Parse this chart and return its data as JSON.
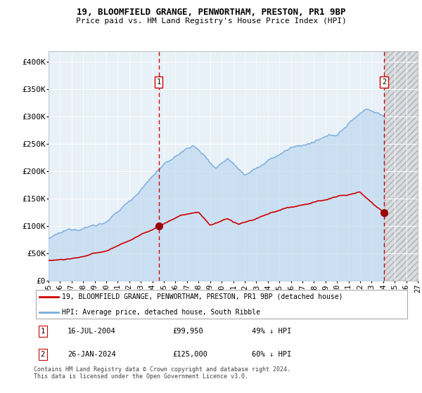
{
  "title": "19, BLOOMFIELD GRANGE, PENWORTHAM, PRESTON, PR1 9BP",
  "subtitle": "Price paid vs. HM Land Registry's House Price Index (HPI)",
  "legend_line1": "19, BLOOMFIELD GRANGE, PENWORTHAM, PRESTON, PR1 9BP (detached house)",
  "legend_line2": "HPI: Average price, detached house, South Ribble",
  "annotation1_date": "16-JUL-2004",
  "annotation1_price": "£99,950",
  "annotation1_hpi": "49% ↓ HPI",
  "annotation2_date": "26-JAN-2024",
  "annotation2_price": "£125,000",
  "annotation2_hpi": "60% ↓ HPI",
  "footnote": "Contains HM Land Registry data © Crown copyright and database right 2024.\nThis data is licensed under the Open Government Licence v3.0.",
  "hpi_color": "#7aaddc",
  "hpi_fill_color": "#b8d4ef",
  "price_color": "#cc0000",
  "marker_color": "#990000",
  "plot_bg": "#e8f0f8",
  "future_bg_color": "#d0d0d0",
  "grid_color": "#ffffff",
  "ylim": [
    0,
    420000
  ],
  "yticks": [
    0,
    50000,
    100000,
    150000,
    200000,
    250000,
    300000,
    350000,
    400000
  ],
  "sale1_year": 2004.54,
  "sale1_value": 99950,
  "sale2_year": 2024.07,
  "sale2_value": 125000,
  "xmin_year": 1995.0,
  "xmax_year": 2027.0,
  "future_start": 2024.07,
  "xtick_years": [
    1995,
    1996,
    1997,
    1998,
    1999,
    2000,
    2001,
    2002,
    2003,
    2004,
    2005,
    2006,
    2007,
    2008,
    2009,
    2010,
    2011,
    2012,
    2013,
    2014,
    2015,
    2016,
    2017,
    2018,
    2019,
    2020,
    2021,
    2022,
    2023,
    2024,
    2025,
    2026,
    2027
  ]
}
